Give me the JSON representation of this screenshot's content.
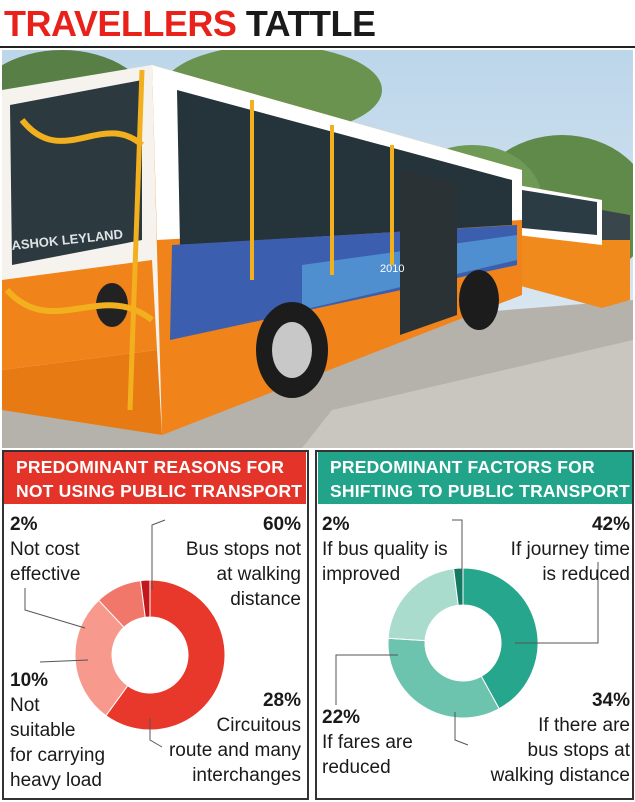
{
  "header": {
    "title_red": "TRAVELLERS",
    "title_dark": "TATTLE"
  },
  "photo": {
    "bus_brand": "ASHOK LEYLAND",
    "bus_number": "2010"
  },
  "chart_data": [
    {
      "type": "pie",
      "title": "PREDOMINANT REASONS FOR NOT USING PUBLIC TRANSPORT",
      "title_line1": "PREDOMINANT REASONS FOR",
      "title_line2": "NOT USING PUBLIC TRANSPORT",
      "header_color": "#e4342a",
      "slices": [
        {
          "pct_label": "60%",
          "value": 60,
          "label_lines": [
            "Bus stops not",
            "at walking",
            "distance"
          ],
          "color": "#e8372b"
        },
        {
          "pct_label": "28%",
          "value": 28,
          "label_lines": [
            "Circuitous",
            "route and many",
            "interchanges"
          ],
          "color": "#f7998c"
        },
        {
          "pct_label": "10%",
          "value": 10,
          "label_lines": [
            "Not",
            "suitable",
            "for carrying",
            "heavy load"
          ],
          "color": "#f0776a"
        },
        {
          "pct_label": "2%",
          "value": 2,
          "label_lines": [
            "Not cost",
            "effective"
          ],
          "color": "#c2181c"
        }
      ]
    },
    {
      "type": "pie",
      "title": "PREDOMINANT FACTORS FOR SHIFTING TO PUBLIC TRANSPORT",
      "title_line1": "PREDOMINANT FACTORS FOR",
      "title_line2": "SHIFTING TO PUBLIC TRANSPORT",
      "header_color": "#21a48a",
      "slices": [
        {
          "pct_label": "42%",
          "value": 42,
          "label_lines": [
            "If journey time",
            "is reduced"
          ],
          "color": "#26a68c"
        },
        {
          "pct_label": "34%",
          "value": 34,
          "label_lines": [
            "If there are",
            "bus stops at",
            "walking distance"
          ],
          "color": "#6cc3ae"
        },
        {
          "pct_label": "22%",
          "value": 22,
          "label_lines": [
            "If fares are",
            "reduced"
          ],
          "color": "#a9dccd"
        },
        {
          "pct_label": "2%",
          "value": 2,
          "label_lines": [
            "If bus quality is",
            "improved"
          ],
          "color": "#127a63"
        }
      ]
    }
  ]
}
